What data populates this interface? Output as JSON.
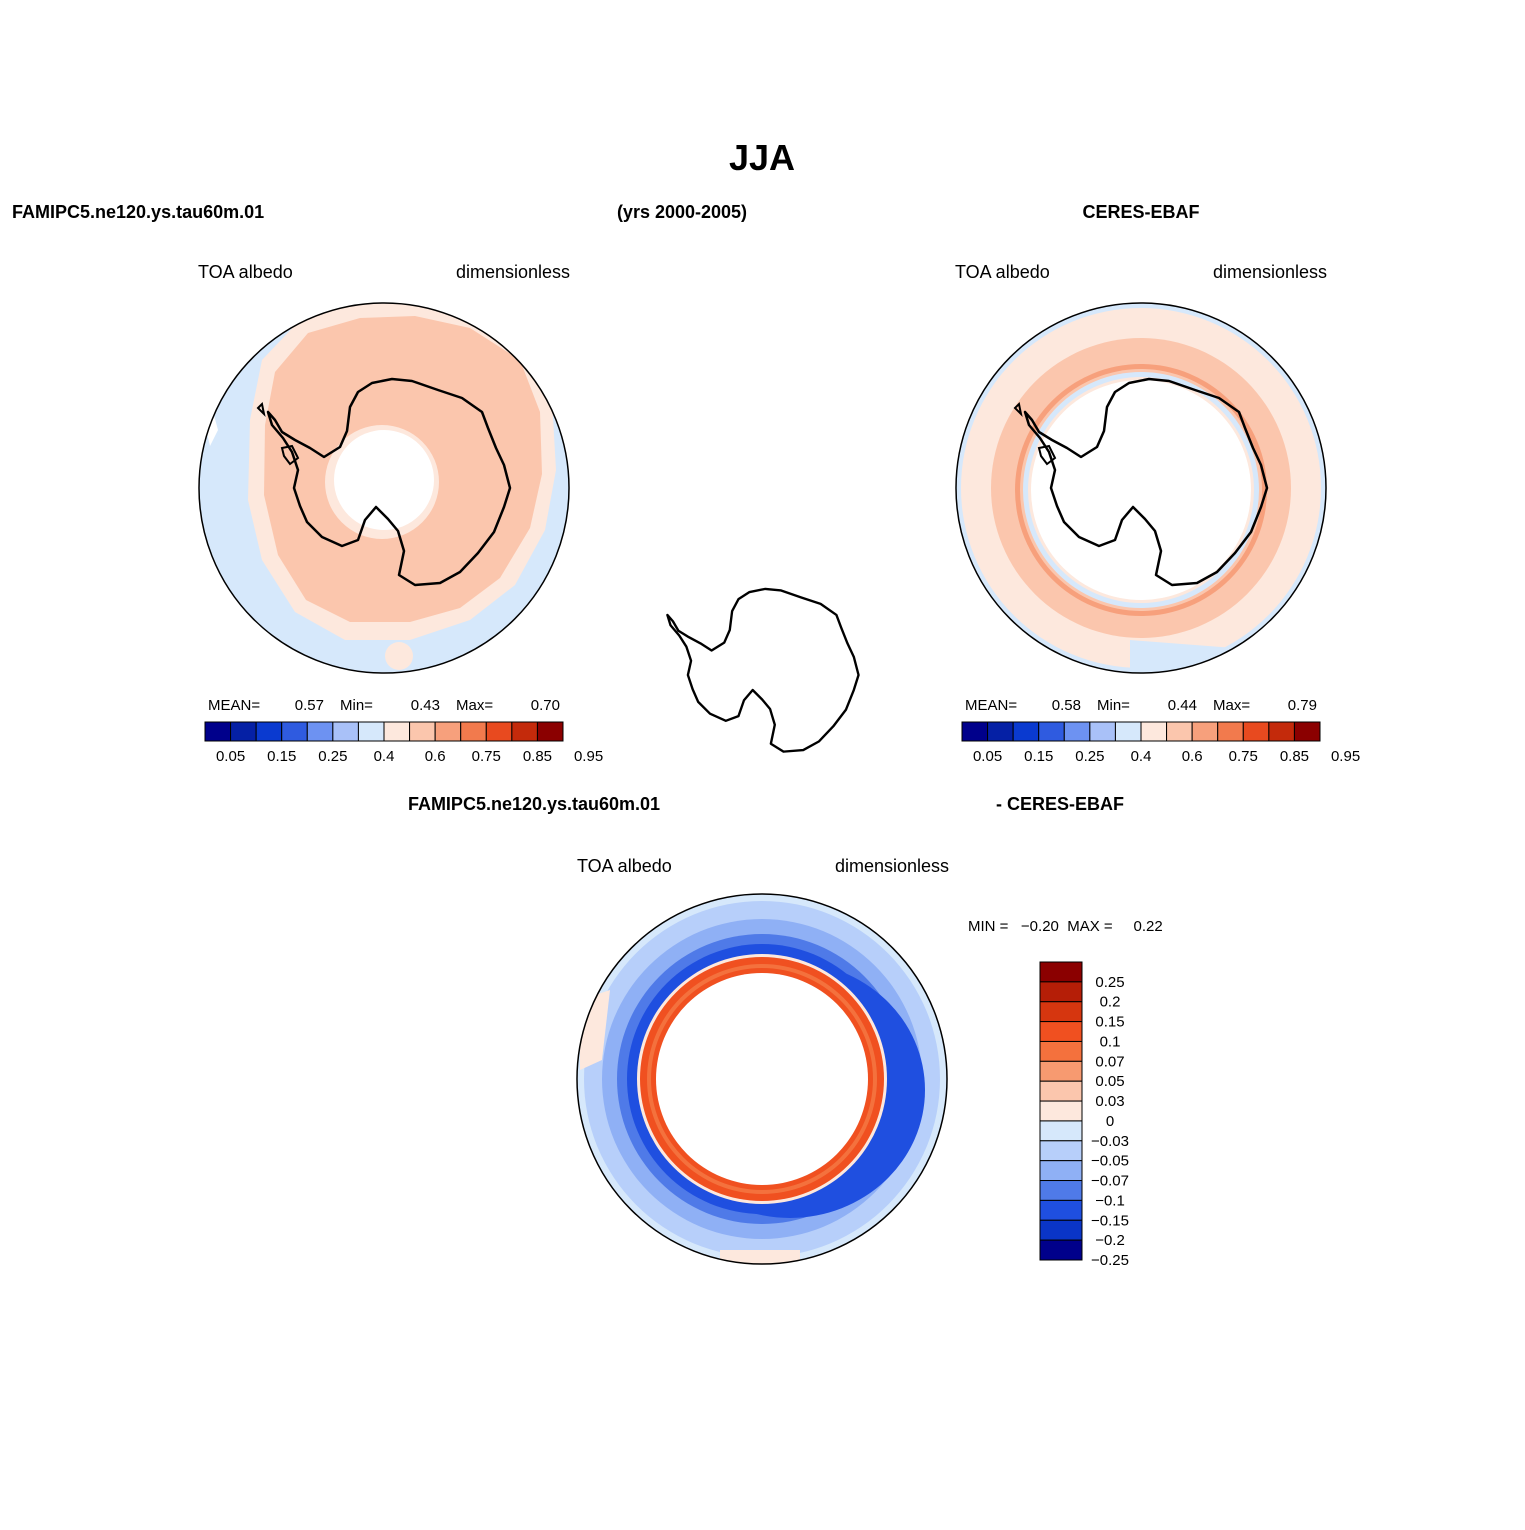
{
  "title": "JJA",
  "header": {
    "left": "FAMIPC5.ne120.ys.tau60m.01",
    "center": "(yrs 2000-2005)",
    "right": "CERES-EBAF"
  },
  "panels": {
    "model": {
      "var_label": "TOA albedo",
      "units": "dimensionless",
      "mean_label": "MEAN=",
      "mean_value": "0.57",
      "min_label": "Min=",
      "min_value": "0.43",
      "max_label": "Max=",
      "max_value": "0.70"
    },
    "obs": {
      "var_label": "TOA albedo",
      "units": "dimensionless",
      "mean_label": "MEAN=",
      "mean_value": "0.58",
      "min_label": "Min=",
      "min_value": "0.44",
      "max_label": "Max=",
      "max_value": "0.79"
    },
    "diff": {
      "title_left": "FAMIPC5.ne120.ys.tau60m.01",
      "title_right": "- CERES-EBAF",
      "var_label": "TOA albedo",
      "units": "dimensionless",
      "minmax_text": "MIN =   −0.20  MAX =     0.22"
    }
  },
  "colorbar_main": {
    "colors": [
      "#00008b",
      "#0520a5",
      "#0a3ad0",
      "#2f5be0",
      "#6d92f2",
      "#a9c1f8",
      "#d6e8fb",
      "#fde8dd",
      "#fbc6ad",
      "#f7a07c",
      "#f27a4d",
      "#e84a1f",
      "#c42a0b",
      "#8b0000"
    ],
    "labels": [
      "0.05",
      "0.15",
      "0.25",
      "0.4",
      "0.6",
      "0.75",
      "0.85",
      "0.95"
    ]
  },
  "colorbar_diff": {
    "colors": [
      "#8b0000",
      "#b51e07",
      "#d6360f",
      "#f05020",
      "#f4713d",
      "#f79a70",
      "#fbc6ad",
      "#fde8dd",
      "#d6e8fb",
      "#b7cffa",
      "#8fb0f5",
      "#4f7ae8",
      "#1f4fe0",
      "#0a35c7",
      "#00008b"
    ],
    "labels": [
      "0.25",
      "0.2",
      "0.15",
      "0.1",
      "0.07",
      "0.05",
      "0.03",
      "0",
      "−0.03",
      "−0.05",
      "−0.07",
      "−0.1",
      "−0.15",
      "−0.2",
      "−0.25"
    ]
  }
}
